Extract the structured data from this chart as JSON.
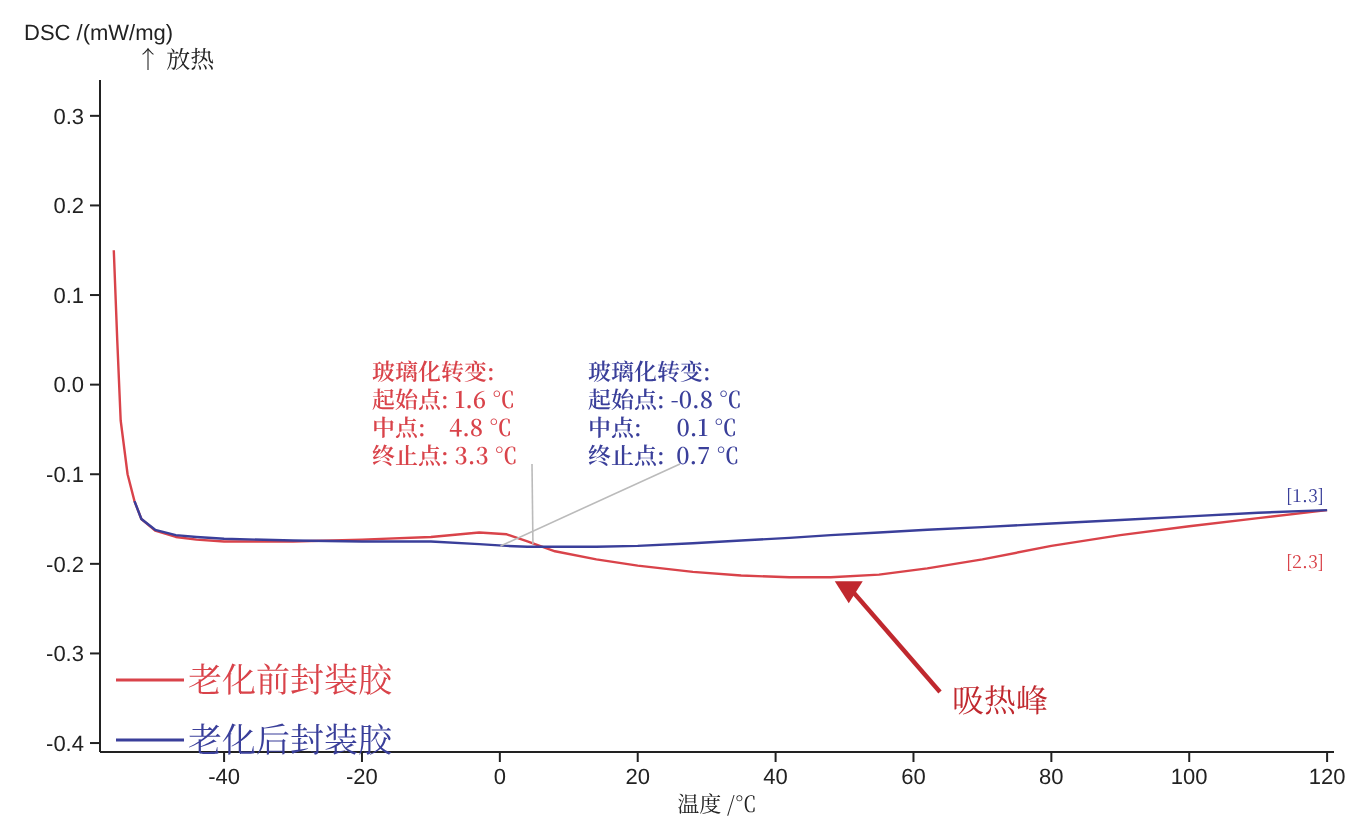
{
  "chart_data": {
    "type": "line",
    "ylabel": "DSC /(mW/mg)",
    "xlabel": "温度 /℃",
    "x": [
      -56,
      -55.5,
      -55,
      -54,
      -53,
      -52,
      -50,
      -47,
      -44,
      -40,
      -30,
      -20,
      -10,
      -3,
      1,
      4,
      8,
      14,
      20,
      28,
      35,
      42,
      48,
      55,
      62,
      70,
      80,
      90,
      100,
      110,
      120
    ],
    "series": [
      {
        "name": "老化前封装胶",
        "color": "#d9434a",
        "values": [
          0.15,
          0.05,
          -0.04,
          -0.1,
          -0.13,
          -0.15,
          -0.163,
          -0.17,
          -0.173,
          -0.175,
          -0.175,
          -0.173,
          -0.17,
          -0.165,
          -0.167,
          -0.175,
          -0.186,
          -0.195,
          -0.202,
          -0.209,
          -0.213,
          -0.215,
          -0.215,
          -0.212,
          -0.205,
          -0.195,
          -0.18,
          -0.168,
          -0.158,
          -0.149,
          -0.14
        ]
      },
      {
        "name": "老化后封装胶",
        "color": "#3a3f9a",
        "values": [
          null,
          null,
          null,
          null,
          -0.13,
          -0.15,
          -0.162,
          -0.168,
          -0.17,
          -0.172,
          -0.174,
          -0.175,
          -0.175,
          -0.178,
          -0.18,
          -0.181,
          -0.181,
          -0.181,
          -0.18,
          -0.177,
          -0.174,
          -0.171,
          -0.168,
          -0.165,
          -0.162,
          -0.159,
          -0.155,
          -0.151,
          -0.147,
          -0.143,
          -0.14
        ]
      }
    ],
    "xlim": [
      -58,
      121
    ],
    "ylim": [
      -0.41,
      0.34
    ],
    "xticks": [
      -40,
      -20,
      0,
      20,
      40,
      60,
      80,
      100,
      120
    ],
    "yticks": [
      {
        "value": -0.4,
        "label": "-0.4"
      },
      {
        "value": -0.3,
        "label": "-0.3"
      },
      {
        "value": -0.2,
        "label": "-0.2"
      },
      {
        "value": -0.1,
        "label": "-0.1"
      },
      {
        "value": 0,
        "label": "0.0"
      },
      {
        "value": 0.1,
        "label": "0.1"
      },
      {
        "value": 0.2,
        "label": "0.2"
      },
      {
        "value": 0.3,
        "label": "0.3"
      }
    ],
    "grid": false,
    "legend": "bottom left",
    "marker": "none",
    "line_style": "solid",
    "annotations": [
      "↑ 放热",
      {
        "text": "玻璃化转变:\n起始点: 1.6 ℃\n中点:    4.8 ℃\n终止点: 3.3 ℃",
        "x": 4.8,
        "y": -0.178
      },
      {
        "text": "玻璃化转变:\n起始点: -0.8 ℃\n中点:      0.1 ℃\n终止点:  0.7 ℃",
        "x": 0.1,
        "y": -0.18
      },
      "吸热峰",
      {
        "text": "[1.3]",
        "x": 120,
        "y": -0.14
      },
      {
        "text": "[2.3]",
        "x": 120,
        "y": -0.14
      }
    ]
  }
}
